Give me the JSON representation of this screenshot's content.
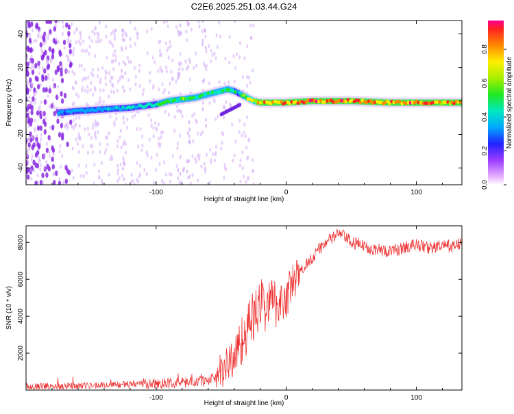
{
  "title": "C2E6.2025.251.03.44.G24",
  "chart_data": [
    {
      "type": "heatmap",
      "name": "spectrogram",
      "xlabel": "Height of straight line (km)",
      "ylabel": "Frequency (Hz)",
      "xlim": [
        -200,
        135
      ],
      "ylim": [
        -50,
        48
      ],
      "xticks": [
        -100,
        0,
        100
      ],
      "yticks": [
        -40,
        -20,
        0,
        20,
        40
      ],
      "colorbar": {
        "label": "Normalized spectral amplitude",
        "range": [
          0,
          0.97
        ],
        "ticks": [
          0.0,
          0.2,
          0.4,
          0.6,
          0.8
        ]
      },
      "ridge": {
        "description": "main frequency ridge (center frequency vs height)",
        "x": [
          -175,
          -160,
          -140,
          -120,
          -100,
          -90,
          -80,
          -70,
          -60,
          -50,
          -45,
          -40,
          -35,
          -30,
          -25,
          -20,
          -10,
          0,
          20,
          50,
          80,
          100,
          120,
          135
        ],
        "freq": [
          -7,
          -6,
          -5,
          -4,
          -2,
          0,
          1,
          2,
          4,
          6,
          7,
          6,
          4,
          2,
          0,
          -1,
          -1,
          -1,
          0,
          0,
          -1,
          -1,
          -1,
          -1
        ],
        "peak_amplitude": [
          0.3,
          0.35,
          0.35,
          0.4,
          0.45,
          0.5,
          0.55,
          0.5,
          0.5,
          0.5,
          0.5,
          0.45,
          0.45,
          0.7,
          0.8,
          0.85,
          0.9,
          0.92,
          0.95,
          0.9,
          0.88,
          0.95,
          0.85,
          0.85
        ]
      },
      "secondary_branch": {
        "x": [
          -50,
          -45,
          -40,
          -35
        ],
        "freq": [
          -8,
          -6,
          -4,
          -2
        ]
      }
    },
    {
      "type": "line",
      "name": "snr",
      "xlabel": "Height of straight line (km)",
      "ylabel": "SNR (10 * v/v)",
      "xlim": [
        -200,
        135
      ],
      "ylim": [
        0,
        8900
      ],
      "xticks": [
        -100,
        0,
        100
      ],
      "yticks": [
        2000,
        4000,
        6000,
        8000
      ],
      "color": "#ee3333",
      "series": [
        {
          "name": "SNR trend",
          "x": [
            -200,
            -150,
            -100,
            -80,
            -60,
            -50,
            -40,
            -35,
            -30,
            -25,
            -20,
            -15,
            -10,
            -5,
            0,
            5,
            10,
            15,
            20,
            25,
            30,
            35,
            40,
            45,
            50,
            60,
            70,
            80,
            90,
            100,
            110,
            120,
            130,
            135
          ],
          "y": [
            200,
            250,
            350,
            400,
            500,
            1000,
            1800,
            2600,
            3300,
            4000,
            4500,
            4700,
            4700,
            4800,
            5000,
            5800,
            6300,
            6800,
            7200,
            7600,
            8000,
            8200,
            8500,
            8300,
            8000,
            7800,
            7600,
            7500,
            7700,
            7900,
            7700,
            7800,
            7800,
            8000
          ]
        }
      ]
    }
  ]
}
